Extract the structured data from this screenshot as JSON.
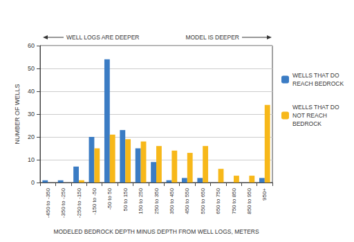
{
  "chart_data": {
    "type": "bar",
    "x_label": "MODELED BEDROCK DEPTH MINUS DEPTH FROM WELL LOGS, METERS",
    "y_label": "NUMBER OF WELLS",
    "annotations": [
      "WELL LOGS ARE DEEPER",
      "MODEL IS DEEPER"
    ],
    "categories": [
      "-450 to -350",
      "-350 to -250",
      "-250 to -150",
      "-150 to -50",
      "-50 to 50",
      "50 to 150",
      "150 to 250",
      "250 to 350",
      "350 to 450",
      "450 to 550",
      "550 to 650",
      "650 to 750",
      "750 to 850",
      "850 to 950",
      "950+"
    ],
    "series": [
      {
        "name": "WELLS THAT DO REACH BEDROCK",
        "color": "#3b7cc4",
        "values": [
          1,
          1,
          7,
          20,
          54,
          23,
          15,
          9,
          1,
          2,
          2,
          0,
          0,
          0,
          2
        ]
      },
      {
        "name": "WELLS THAT DO NOT REACH BEDROCK",
        "color": "#f7b81a",
        "values": [
          0,
          0,
          1,
          15,
          21,
          19,
          18,
          16,
          14,
          13,
          16,
          6,
          3,
          3,
          34
        ]
      }
    ],
    "ylim": [
      0,
      60
    ],
    "yticks": [
      0,
      10,
      20,
      30,
      40,
      50,
      60
    ],
    "grid": true,
    "legend": "right"
  }
}
